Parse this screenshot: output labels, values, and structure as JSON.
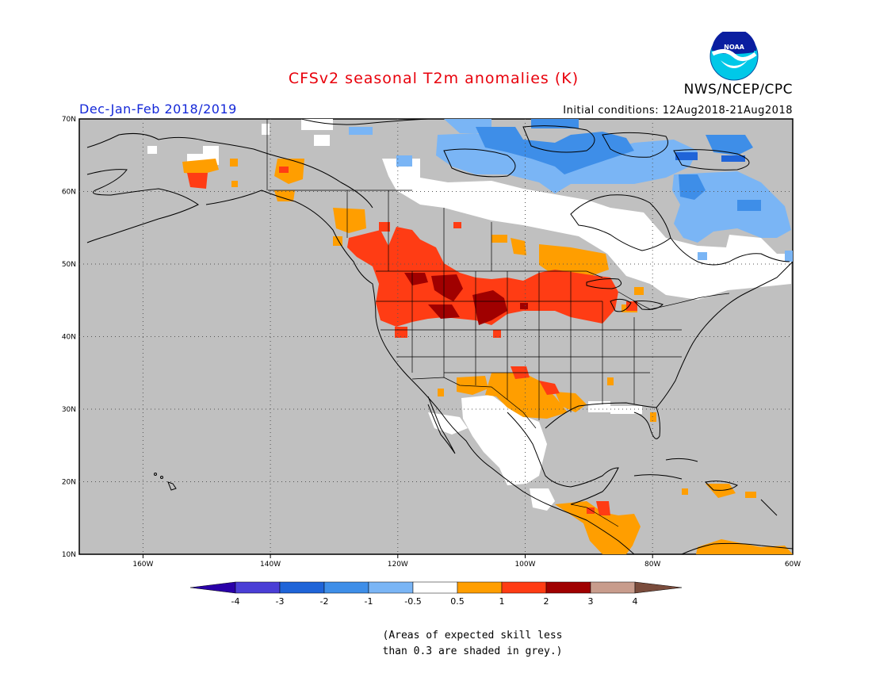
{
  "header": {
    "title": "CFSv2 seasonal T2m anomalies (K)",
    "season": "Dec-Jan-Feb 2018/2019",
    "initial_conditions": "Initial conditions: 12Aug2018-21Aug2018",
    "org": "NWS/NCEP/CPC",
    "logo_text": "NOAA"
  },
  "map": {
    "projection": "cylindrical equidistant",
    "lon_range": [
      -172,
      -60
    ],
    "lat_range": [
      10,
      70
    ],
    "gridlines": "dotted",
    "lat_ticks": [
      {
        "value": 70,
        "label": "70N"
      },
      {
        "value": 60,
        "label": "60N"
      },
      {
        "value": 50,
        "label": "50N"
      },
      {
        "value": 40,
        "label": "40N"
      },
      {
        "value": 30,
        "label": "30N"
      },
      {
        "value": 20,
        "label": "20N"
      },
      {
        "value": 10,
        "label": "10N"
      }
    ],
    "lon_ticks": [
      {
        "value": -160,
        "label": "160W"
      },
      {
        "value": -140,
        "label": "140W"
      },
      {
        "value": -120,
        "label": "120W"
      },
      {
        "value": -100,
        "label": "100W"
      },
      {
        "value": -80,
        "label": "80W"
      },
      {
        "value": -60,
        "label": "60W"
      }
    ]
  },
  "colorbar": {
    "ticks": [
      "-4",
      "-3",
      "-2",
      "-1",
      "-0.5",
      "0.5",
      "1",
      "2",
      "3",
      "4"
    ],
    "colors": [
      "#2a00a8",
      "#4a3ed6",
      "#1f64d8",
      "#3e8ee8",
      "#7ab5f5",
      "#ffffff",
      "#ff9e00",
      "#ff3c14",
      "#a00000",
      "#c89c8c",
      "#7a4c3c"
    ]
  },
  "colors": {
    "grey_low_skill": "#c0c0c0",
    "title": "#e8000b",
    "season": "#1428d8"
  },
  "footnote": {
    "line1": "(Areas of expected skill less",
    "line2": "than 0.3 are shaded in grey.)"
  }
}
